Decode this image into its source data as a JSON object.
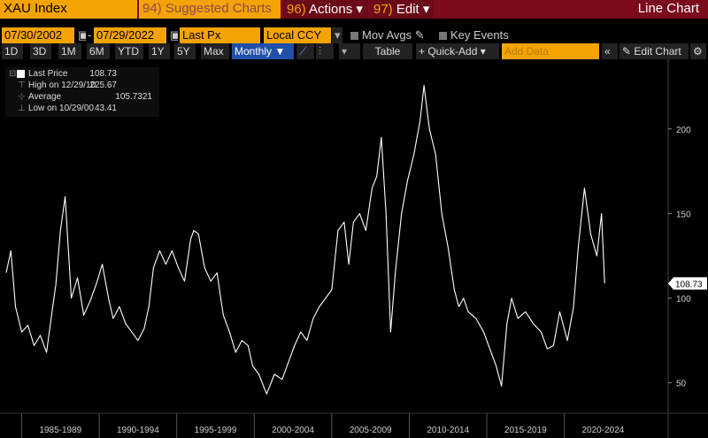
{
  "toolbar1": {
    "ticker": "XAU Index",
    "suggested_num": "94)",
    "suggested": "Suggested Charts",
    "actions_num": "96)",
    "actions": "Actions ▾",
    "edit_num": "97)",
    "edit": "Edit ▾",
    "chart_type": "Line Chart"
  },
  "toolbar2": {
    "start_date": "07/30/2002",
    "end_date": "07/29/2022",
    "dash": "-",
    "field": "Last Px",
    "currency": "Local CCY",
    "mov_avgs": "Mov Avgs",
    "key_events": "Key Events"
  },
  "toolbar3": {
    "ranges": [
      "1D",
      "3D",
      "1M",
      "6M",
      "YTD",
      "1Y",
      "5Y",
      "Max"
    ],
    "frequency": "Monthly ▼",
    "table": "Table",
    "quick_add": "+ Quick-Add ▾",
    "add_data_placeholder": "Add Data",
    "collapse": "«",
    "edit_chart": "Edit Chart",
    "dots": "▾"
  },
  "legend": {
    "last_label": "Last Price",
    "last_value": "108.73",
    "high_label": "High on 12/29/10",
    "high_value": "225.67",
    "avg_label": "Average",
    "avg_value": "105.7321",
    "low_label": "Low on 10/29/00",
    "low_value": "43.41"
  },
  "colors": {
    "line": "#ffffff",
    "toolbar_red": "#7a0a1c",
    "accent_orange": "#f5a300",
    "active_blue": "#1f4fa8"
  },
  "chart_data": {
    "type": "line",
    "x_range": [
      1983.6,
      2026.7
    ],
    "ylim": [
      32,
      237
    ],
    "yticks": [
      50,
      100,
      150,
      200
    ],
    "xtick_labels": [
      "1985-1989",
      "1990-1994",
      "1995-1999",
      "2000-2004",
      "2005-2009",
      "2010-2014",
      "2015-2019",
      "2020-2024"
    ],
    "last_value_label": "108.73",
    "series": [
      {
        "x": [
          1984.0,
          1984.3,
          1984.6,
          1985.0,
          1985.4,
          1985.8,
          1986.2,
          1986.6,
          1987.0,
          1987.2,
          1987.5,
          1987.8,
          1988.2,
          1988.6,
          1989.0,
          1989.4,
          1989.8,
          1990.2,
          1990.6,
          1990.9,
          1991.3,
          1991.7,
          1992.1,
          1992.5,
          1992.9,
          1993.2,
          1993.5,
          1993.9,
          1994.3,
          1994.7,
          1995.1,
          1995.5,
          1995.9,
          1996.1,
          1996.4,
          1996.8,
          1997.2,
          1997.6,
          1998.0,
          1998.4,
          1998.8,
          1999.2,
          1999.6,
          1999.9,
          2000.3,
          2000.8,
          2001.3,
          2001.8,
          2002.2,
          2002.6,
          2003.0,
          2003.4,
          2003.8,
          2004.2,
          2004.6,
          2005.0,
          2005.4,
          2005.8,
          2006.1,
          2006.4,
          2006.8,
          2007.2,
          2007.6,
          2007.9,
          2008.2,
          2008.5,
          2008.8,
          2009.1,
          2009.5,
          2009.9,
          2010.3,
          2010.7,
          2010.95,
          2011.3,
          2011.7,
          2012.1,
          2012.5,
          2012.9,
          2013.2,
          2013.5,
          2013.8,
          2014.3,
          2014.8,
          2015.2,
          2015.6,
          2015.95,
          2016.3,
          2016.6,
          2017.0,
          2017.5,
          2018.0,
          2018.5,
          2018.9,
          2019.3,
          2019.7,
          2020.2,
          2020.6,
          2020.9,
          2021.3,
          2021.7,
          2022.1,
          2022.4,
          2022.6
        ],
        "y": [
          115,
          128,
          95,
          80,
          84,
          72,
          78,
          68,
          95,
          108,
          140,
          160,
          100,
          112,
          90,
          98,
          108,
          120,
          100,
          88,
          95,
          85,
          80,
          75,
          82,
          95,
          118,
          128,
          120,
          128,
          118,
          110,
          135,
          140,
          138,
          118,
          110,
          115,
          90,
          80,
          68,
          75,
          72,
          60,
          55,
          43.4,
          55,
          52,
          62,
          72,
          80,
          75,
          88,
          95,
          100,
          105,
          140,
          145,
          120,
          145,
          150,
          140,
          165,
          172,
          195,
          150,
          80,
          115,
          150,
          170,
          185,
          205,
          225.7,
          200,
          185,
          150,
          130,
          105,
          95,
          100,
          92,
          88,
          80,
          70,
          60,
          48,
          85,
          100,
          88,
          92,
          85,
          80,
          70,
          72,
          92,
          75,
          95,
          130,
          165,
          138,
          125,
          150,
          108.7
        ]
      }
    ]
  }
}
